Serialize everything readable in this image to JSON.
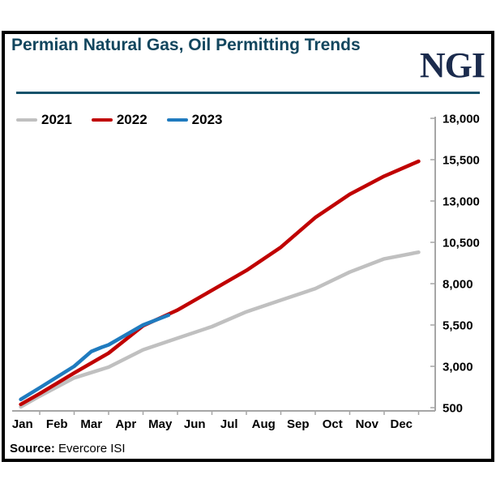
{
  "header": {
    "title": "Permian Natural Gas, Oil Permitting Trends",
    "logo_text": "NGI"
  },
  "source": {
    "label": "Source:",
    "text": " Evercore ISI"
  },
  "colors": {
    "title_text": "#12465e",
    "logo_text": "#1b2b4d",
    "divider_rule": "#14526b",
    "axis": "#a6a6a6",
    "frame_border": "#000000"
  },
  "chart_data": {
    "type": "line",
    "title": "Permian Natural Gas, Oil Permitting Trends",
    "xlabel": "",
    "ylabel": "",
    "grid": false,
    "legend_position": "top-left",
    "x_labels": [
      "Jan",
      "Feb",
      "Mar",
      "Apr",
      "May",
      "Jun",
      "Jul",
      "Aug",
      "Sep",
      "Oct",
      "Nov",
      "Dec"
    ],
    "y_axis": {
      "side": "right",
      "min": 500,
      "max": 18000,
      "step": 2500,
      "ticks": [
        {
          "label": "18,000",
          "value": 18000
        },
        {
          "label": "15,500",
          "value": 15500
        },
        {
          "label": "13,000",
          "value": 13000
        },
        {
          "label": "10,500",
          "value": 10500
        },
        {
          "label": "8,000",
          "value": 8000
        },
        {
          "label": "5,500",
          "value": 5500
        },
        {
          "label": "3,000",
          "value": 3000
        },
        {
          "label": "500",
          "value": 500
        }
      ]
    },
    "points_format": "[month_fraction (0 = Jan 1, 12 = Dec 31), cumulative_permits]",
    "series": [
      {
        "name": "2021",
        "color": "#c0c0c0",
        "points": [
          [
            0.45,
            550
          ],
          [
            1,
            1200
          ],
          [
            2,
            2300
          ],
          [
            3,
            2950
          ],
          [
            4,
            4000
          ],
          [
            5,
            4700
          ],
          [
            6,
            5400
          ],
          [
            7,
            6300
          ],
          [
            8,
            7000
          ],
          [
            9,
            7700
          ],
          [
            10,
            8700
          ],
          [
            11,
            9500
          ],
          [
            12,
            9900
          ]
        ]
      },
      {
        "name": "2022",
        "color": "#c00000",
        "points": [
          [
            0.45,
            700
          ],
          [
            1,
            1350
          ],
          [
            2,
            2600
          ],
          [
            3,
            3800
          ],
          [
            4,
            5450
          ],
          [
            5,
            6400
          ],
          [
            6,
            7600
          ],
          [
            7,
            8800
          ],
          [
            8,
            10200
          ],
          [
            9,
            12000
          ],
          [
            10,
            13400
          ],
          [
            11,
            14500
          ],
          [
            12,
            15400
          ]
        ]
      },
      {
        "name": "2023",
        "color": "#1f7bbf",
        "points": [
          [
            0.45,
            1000
          ],
          [
            1,
            1700
          ],
          [
            2,
            3000
          ],
          [
            2.5,
            3900
          ],
          [
            2.8,
            4150
          ],
          [
            3,
            4300
          ],
          [
            4,
            5500
          ],
          [
            4.74,
            6100
          ]
        ]
      }
    ]
  }
}
